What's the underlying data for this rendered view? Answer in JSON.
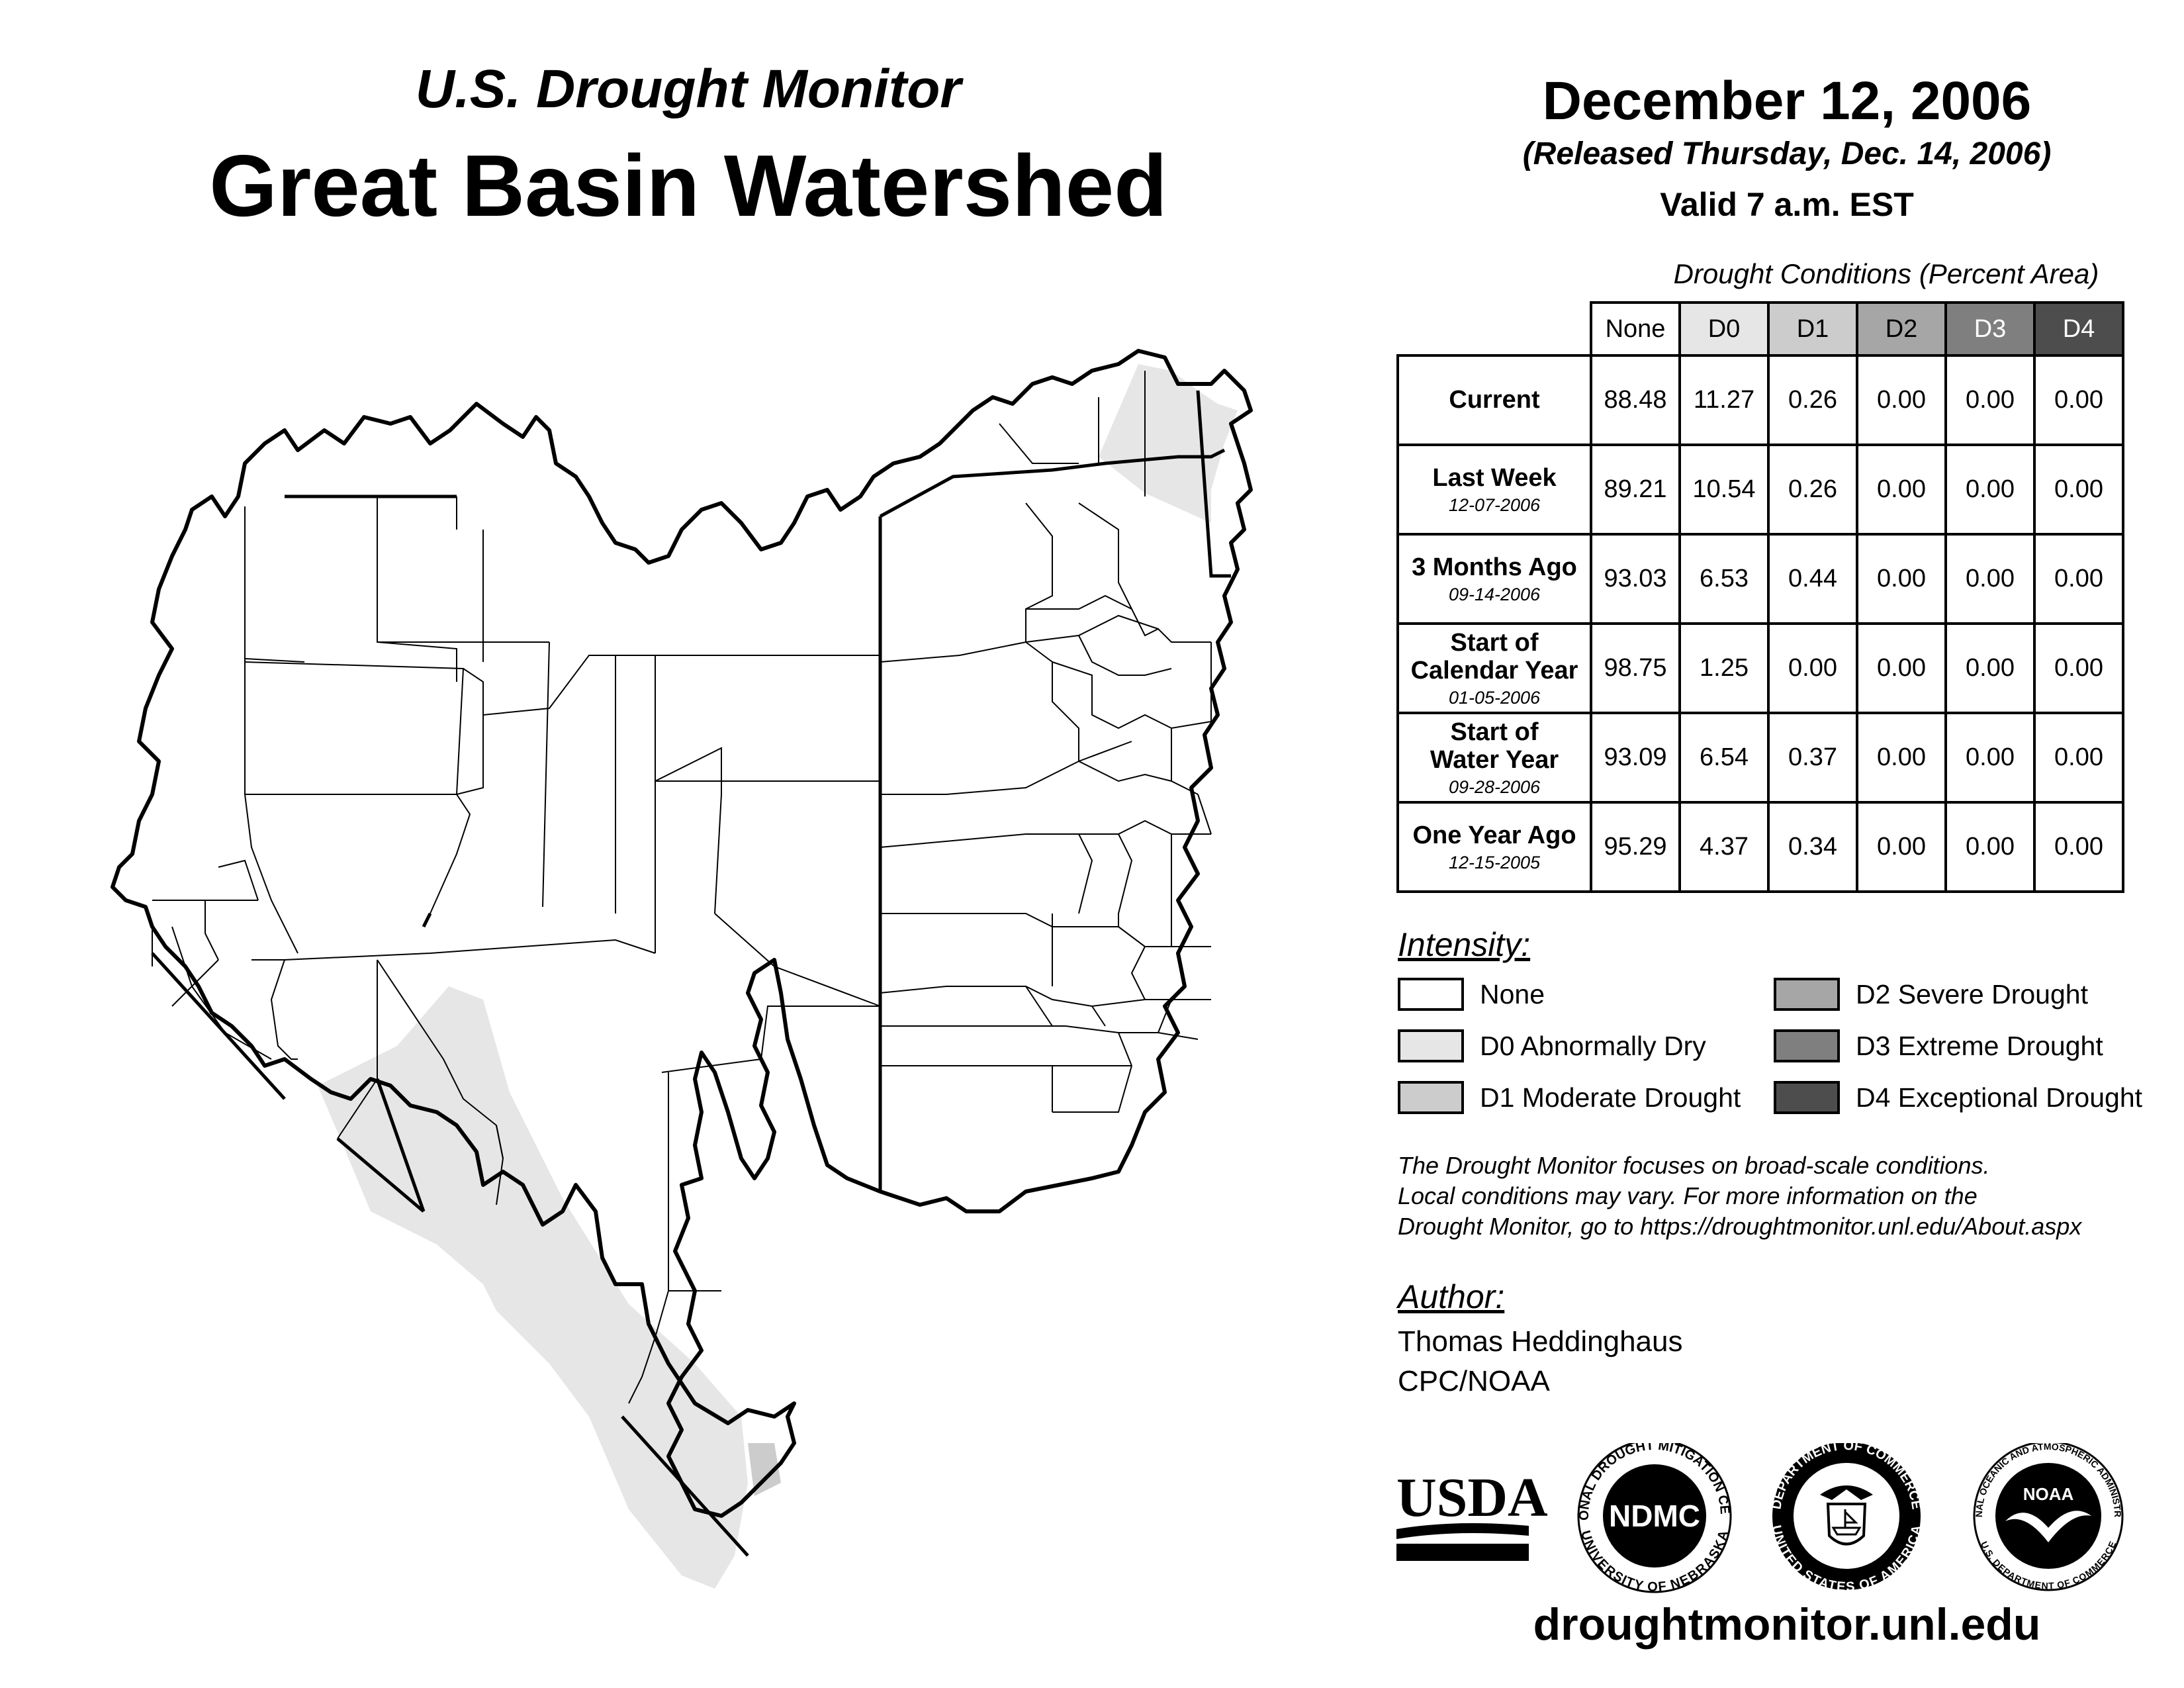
{
  "header": {
    "subtitle": "U.S. Drought Monitor",
    "title": "Great Basin Watershed",
    "date": "December 12, 2006",
    "released": "(Released Thursday, Dec. 14, 2006)",
    "valid": "Valid 7 a.m. EST"
  },
  "table": {
    "caption": "Drought Conditions (Percent Area)",
    "columns": [
      "None",
      "D0",
      "D1",
      "D2",
      "D3",
      "D4"
    ],
    "column_colors": [
      "#ffffff",
      "#e6e6e6",
      "#cccccc",
      "#a6a6a6",
      "#7f7f7f",
      "#4d4d4d"
    ],
    "column_text_colors": [
      "#000000",
      "#000000",
      "#000000",
      "#000000",
      "#ffffff",
      "#ffffff"
    ],
    "rows": [
      {
        "label_line1": "Current",
        "label_line2": "",
        "date": "",
        "values": [
          "88.48",
          "11.27",
          "0.26",
          "0.00",
          "0.00",
          "0.00"
        ]
      },
      {
        "label_line1": "Last Week",
        "label_line2": "",
        "date": "12-07-2006",
        "values": [
          "89.21",
          "10.54",
          "0.26",
          "0.00",
          "0.00",
          "0.00"
        ]
      },
      {
        "label_line1": "3 Months Ago",
        "label_line2": "",
        "date": "09-14-2006",
        "values": [
          "93.03",
          "6.53",
          "0.44",
          "0.00",
          "0.00",
          "0.00"
        ]
      },
      {
        "label_line1": "Start of",
        "label_line2": "Calendar Year",
        "date": "01-05-2006",
        "values": [
          "98.75",
          "1.25",
          "0.00",
          "0.00",
          "0.00",
          "0.00"
        ]
      },
      {
        "label_line1": "Start of",
        "label_line2": "Water Year",
        "date": "09-28-2006",
        "values": [
          "93.09",
          "6.54",
          "0.37",
          "0.00",
          "0.00",
          "0.00"
        ]
      },
      {
        "label_line1": "One Year Ago",
        "label_line2": "",
        "date": "12-15-2005",
        "values": [
          "95.29",
          "4.37",
          "0.34",
          "0.00",
          "0.00",
          "0.00"
        ]
      }
    ]
  },
  "legend": {
    "heading": "Intensity:",
    "items": [
      {
        "label": "None",
        "color": "#ffffff"
      },
      {
        "label": "D0 Abnormally Dry",
        "color": "#e6e6e6"
      },
      {
        "label": "D1 Moderate Drought",
        "color": "#cccccc"
      },
      {
        "label": "D2 Severe Drought",
        "color": "#a6a6a6"
      },
      {
        "label": "D3 Extreme Drought",
        "color": "#7f7f7f"
      },
      {
        "label": "D4 Exceptional Drought",
        "color": "#4d4d4d"
      }
    ]
  },
  "note": {
    "line1": "The Drought Monitor focuses on broad-scale conditions.",
    "line2": "Local conditions may vary. For more information on the",
    "line3": "Drought Monitor, go to https://droughtmonitor.unl.edu/About.aspx"
  },
  "author": {
    "heading": "Author:",
    "name": "Thomas Heddinghaus",
    "org": "CPC/NOAA"
  },
  "logos": {
    "usda": "USDA",
    "ndmc": "NDMC",
    "ndmc_ring_top": "NATIONAL DROUGHT MITIGATION CENTER",
    "ndmc_ring_bottom": "UNIVERSITY OF NEBRASKA",
    "doc_ring_top": "DEPARTMENT OF COMMERCE",
    "doc_ring_bottom": "UNITED STATES OF AMERICA",
    "noaa": "NOAA",
    "noaa_ring_top": "NATIONAL OCEANIC AND ATMOSPHERIC ADMINISTRATION",
    "noaa_ring_bottom": "U.S. DEPARTMENT OF COMMERCE"
  },
  "site_url": "droughtmonitor.unl.edu",
  "map": {
    "region": "Great Basin Watershed",
    "colors": {
      "none": "#ffffff",
      "d0": "#e6e6e6",
      "d1": "#cccccc",
      "outline": "#000000"
    }
  }
}
